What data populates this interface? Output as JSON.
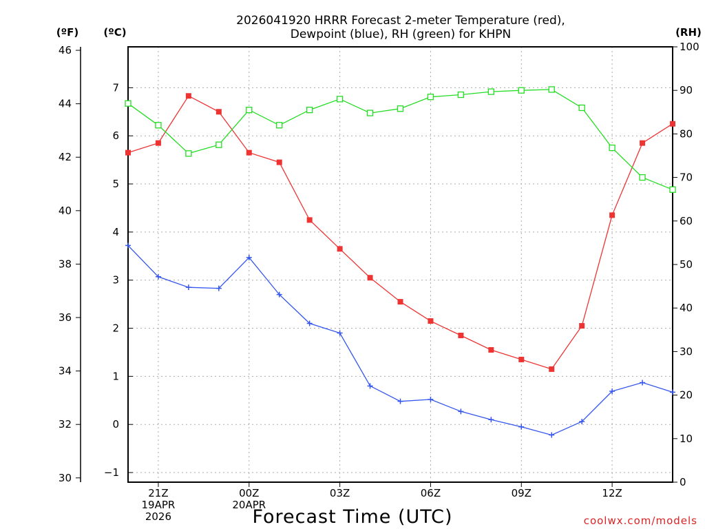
{
  "credit": "coolwx.com/models",
  "colors": {
    "temperature": "#ee3333",
    "dewpoint": "#3355ee",
    "rh": "#22dd22",
    "grid": "#aaaaaa",
    "credit": "#dd2222"
  },
  "chart_data": {
    "type": "line",
    "title_line1": "2026041920 HRRR Forecast 2-meter Temperature (red),",
    "title_line2": "Dewpoint (blue), RH (green) for KHPN",
    "xlabel": "Forecast Time (UTC)",
    "units": {
      "fahrenheit": "(ºF)",
      "celsius": "(ºC)",
      "rh": "(RH)"
    },
    "x_hours": [
      20,
      21,
      22,
      23,
      24,
      25,
      26,
      27,
      28,
      29,
      30,
      31,
      32,
      33,
      34,
      35,
      36,
      37,
      38
    ],
    "x_ticks": [
      {
        "hour": 21,
        "lines": [
          "21Z",
          "19APR",
          "2026"
        ]
      },
      {
        "hour": 24,
        "lines": [
          "00Z",
          "20APR"
        ]
      },
      {
        "hour": 27,
        "lines": [
          "03Z"
        ]
      },
      {
        "hour": 30,
        "lines": [
          "06Z"
        ]
      },
      {
        "hour": 33,
        "lines": [
          "09Z"
        ]
      },
      {
        "hour": 36,
        "lines": [
          "12Z"
        ]
      }
    ],
    "xlim": [
      20,
      38
    ],
    "celsius_range": [
      -1.2,
      7.85
    ],
    "celsius_ticks": [
      "-1",
      "0",
      "1",
      "2",
      "3",
      "4",
      "5",
      "6",
      "7"
    ],
    "fahrenheit_ticks": [
      "30",
      "32",
      "34",
      "36",
      "38",
      "40",
      "42",
      "44",
      "46"
    ],
    "rh_range": [
      0,
      100
    ],
    "rh_ticks": [
      "0",
      "10",
      "20",
      "30",
      "40",
      "50",
      "60",
      "70",
      "80",
      "90",
      "100"
    ],
    "series": [
      {
        "name": "2-meter Temperature",
        "axis": "celsius",
        "color": "#ee3333",
        "marker": "filled-square",
        "values": [
          5.65,
          5.85,
          6.83,
          6.5,
          5.65,
          5.45,
          4.25,
          3.65,
          3.05,
          2.55,
          2.15,
          1.85,
          1.55,
          1.35,
          1.15,
          2.05,
          4.35,
          5.85,
          6.25
        ]
      },
      {
        "name": "Dewpoint",
        "axis": "celsius",
        "color": "#3355ee",
        "marker": "plus",
        "values": [
          3.72,
          3.07,
          2.85,
          2.83,
          3.47,
          2.7,
          2.1,
          1.9,
          0.8,
          0.48,
          0.52,
          0.27,
          0.1,
          -0.05,
          -0.22,
          0.06,
          0.69,
          0.87,
          0.67
        ]
      },
      {
        "name": "RH",
        "axis": "rh",
        "color": "#22dd22",
        "marker": "open-square",
        "values": [
          87,
          82,
          75.5,
          77.5,
          85.5,
          82,
          85.5,
          88,
          84.8,
          85.8,
          88.5,
          89,
          89.7,
          90,
          90.2,
          86,
          76.8,
          70,
          67.2
        ]
      }
    ]
  }
}
